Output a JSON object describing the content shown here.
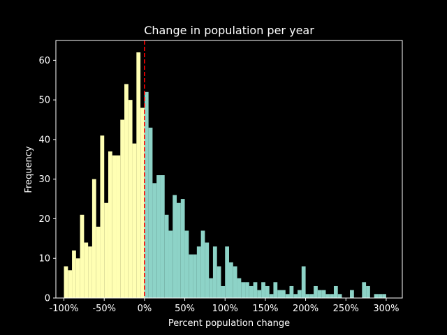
{
  "chart_data": {
    "type": "bar",
    "title": "Change in population per year",
    "xlabel": "Percent population change",
    "ylabel": "Frequency",
    "xlim": [
      -110,
      320
    ],
    "ylim": [
      0,
      65
    ],
    "bin_width": 5,
    "x_ticks": [
      -100,
      -50,
      0,
      50,
      100,
      150,
      200,
      250,
      300
    ],
    "x_tick_labels": [
      "-100%",
      "-50%",
      "0%",
      "50%",
      "100%",
      "150%",
      "200%",
      "250%",
      "300%"
    ],
    "y_ticks": [
      0,
      10,
      20,
      30,
      40,
      50,
      60
    ],
    "y_tick_labels": [
      "0",
      "10",
      "20",
      "30",
      "40",
      "50",
      "60"
    ],
    "reference_line": {
      "x": 0,
      "color": "#ff0000",
      "style": "dashed"
    },
    "grid": false,
    "series": [
      {
        "color": "#ffffb3",
        "bin_starts": [
          -100,
          -95,
          -90,
          -85,
          -80,
          -75,
          -70,
          -65,
          -60,
          -55,
          -50,
          -45,
          -40,
          -35,
          -30,
          -25,
          -20,
          -15,
          -10,
          -5
        ],
        "values": [
          8,
          7,
          12,
          10,
          21,
          14,
          13,
          30,
          18,
          41,
          24,
          37,
          36,
          36,
          45,
          54,
          50,
          39,
          62,
          48
        ]
      },
      {
        "color": "#8dd3c7",
        "bin_starts": [
          0,
          5,
          10,
          15,
          20,
          25,
          30,
          35,
          40,
          45,
          50,
          55,
          60,
          65,
          70,
          75,
          80,
          85,
          90,
          95,
          100,
          105,
          110,
          115,
          120,
          125,
          130,
          135,
          140,
          145,
          150,
          155,
          160,
          165,
          170,
          175,
          180,
          185,
          190,
          195,
          200,
          205,
          210,
          215,
          220,
          225,
          230,
          235,
          240,
          245,
          250,
          255,
          260,
          265,
          270,
          275,
          280,
          285,
          290,
          295
        ],
        "values": [
          52,
          43,
          29,
          31,
          31,
          21,
          17,
          26,
          24,
          25,
          17,
          11,
          11,
          13,
          17,
          14,
          5,
          13,
          8,
          3,
          13,
          9,
          8,
          5,
          4,
          4,
          3,
          4,
          2,
          4,
          3,
          1,
          4,
          2,
          2,
          1,
          3,
          1,
          2,
          8,
          1,
          1,
          3,
          2,
          2,
          1,
          1,
          3,
          1,
          0,
          0,
          2,
          0,
          0,
          4,
          3,
          0,
          1,
          1,
          1
        ]
      }
    ]
  }
}
